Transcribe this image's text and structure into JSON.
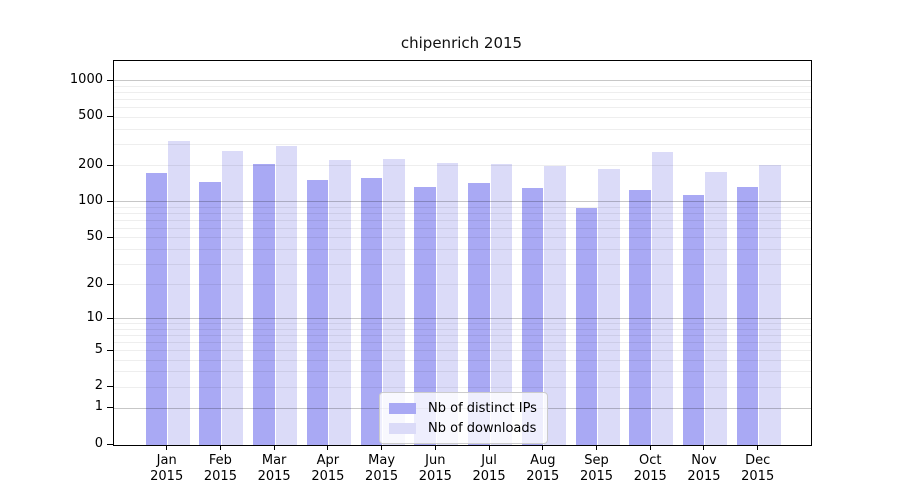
{
  "chart_data": {
    "type": "bar",
    "title": "chipenrich 2015",
    "categories": [
      "Jan 2015",
      "Feb 2015",
      "Mar 2015",
      "Apr 2015",
      "May 2015",
      "Jun 2015",
      "Jul 2015",
      "Aug 2015",
      "Sep 2015",
      "Oct 2015",
      "Nov 2015",
      "Dec 2015"
    ],
    "series": [
      {
        "name": "Nb of distinct IPs",
        "color": "#a9a9f4",
        "values": [
          172,
          145,
          206,
          151,
          159,
          133,
          142,
          130,
          89,
          126,
          114,
          133
        ]
      },
      {
        "name": "Nb of downloads",
        "color": "#dbdbf8",
        "values": [
          320,
          264,
          288,
          222,
          228,
          211,
          205,
          198,
          186,
          257,
          177,
          202
        ]
      }
    ],
    "xlabel": "",
    "ylabel": "",
    "yscale": "log1p",
    "yticks": [
      0,
      1,
      2,
      5,
      10,
      20,
      50,
      100,
      200,
      500,
      1000
    ],
    "ylim": [
      0,
      1460
    ],
    "grid": {
      "horizontal": true,
      "major_at_powers_of_10": true,
      "vertical": false
    },
    "legend_position": "bottom-center"
  },
  "colors": {
    "background": "#ffffff",
    "axis": "#000000",
    "grid_minor": "#eeeeee",
    "grid_major": "#c6c6c6",
    "bar_ips": "#a9a9f4",
    "bar_downloads": "#dbdbf8"
  }
}
